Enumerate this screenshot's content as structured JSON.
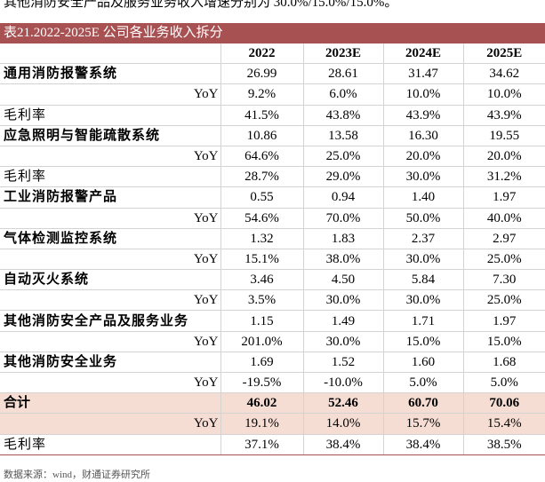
{
  "intro_text": "其他消防安全产品及服务业务收入增速分别为 30.0%/15.0%/15.0%。",
  "table_title": "表21.2022-2025E 公司各业务收入拆分",
  "columns": [
    "",
    "2022",
    "2023E",
    "2024E",
    "2025E"
  ],
  "rows": [
    {
      "label": "通用消防报警系统",
      "type": "cat",
      "values": [
        "26.99",
        "28.61",
        "31.47",
        "34.62"
      ]
    },
    {
      "label": "YoY",
      "type": "yoy",
      "values": [
        "9.2%",
        "6.0%",
        "10.0%",
        "10.0%"
      ]
    },
    {
      "label": "毛利率",
      "type": "margin",
      "values": [
        "41.5%",
        "43.8%",
        "43.9%",
        "43.9%"
      ]
    },
    {
      "label": "应急照明与智能疏散系统",
      "type": "cat",
      "values": [
        "10.86",
        "13.58",
        "16.30",
        "19.55"
      ]
    },
    {
      "label": "YoY",
      "type": "yoy",
      "values": [
        "64.6%",
        "25.0%",
        "20.0%",
        "20.0%"
      ]
    },
    {
      "label": "毛利率",
      "type": "margin",
      "values": [
        "28.7%",
        "29.0%",
        "30.0%",
        "31.2%"
      ]
    },
    {
      "label": "工业消防报警产品",
      "type": "cat",
      "values": [
        "0.55",
        "0.94",
        "1.40",
        "1.97"
      ]
    },
    {
      "label": "YoY",
      "type": "yoy",
      "values": [
        "54.6%",
        "70.0%",
        "50.0%",
        "40.0%"
      ]
    },
    {
      "label": "气体检测监控系统",
      "type": "cat",
      "values": [
        "1.32",
        "1.83",
        "2.37",
        "2.97"
      ]
    },
    {
      "label": "YoY",
      "type": "yoy",
      "values": [
        "15.1%",
        "38.0%",
        "30.0%",
        "25.0%"
      ]
    },
    {
      "label": "自动灭火系统",
      "type": "cat",
      "values": [
        "3.46",
        "4.50",
        "5.84",
        "7.30"
      ]
    },
    {
      "label": "YoY",
      "type": "yoy",
      "values": [
        "3.5%",
        "30.0%",
        "30.0%",
        "25.0%"
      ]
    },
    {
      "label": "其他消防安全产品及服务业务",
      "type": "cat",
      "values": [
        "1.15",
        "1.49",
        "1.71",
        "1.97"
      ]
    },
    {
      "label": "YoY",
      "type": "yoy",
      "values": [
        "201.0%",
        "30.0%",
        "15.0%",
        "15.0%"
      ]
    },
    {
      "label": "其他消防安全业务",
      "type": "cat",
      "values": [
        "1.69",
        "1.52",
        "1.60",
        "1.68"
      ]
    },
    {
      "label": "YoY",
      "type": "yoy",
      "values": [
        "-19.5%",
        "-10.0%",
        "5.0%",
        "5.0%"
      ]
    },
    {
      "label": "合计",
      "type": "total hl",
      "values": [
        "46.02",
        "52.46",
        "60.70",
        "70.06"
      ]
    },
    {
      "label": "YoY",
      "type": "yoy hl",
      "values": [
        "19.1%",
        "14.0%",
        "15.7%",
        "15.4%"
      ]
    },
    {
      "label": "毛利率",
      "type": "margin last",
      "values": [
        "37.1%",
        "38.4%",
        "38.4%",
        "38.5%"
      ]
    }
  ],
  "source_note": "数据来源：wind，财通证券研究所",
  "colors": {
    "title_bg": "#a85152",
    "highlight_bg": "#f6ddd3",
    "grid": "#d3d3d3"
  }
}
